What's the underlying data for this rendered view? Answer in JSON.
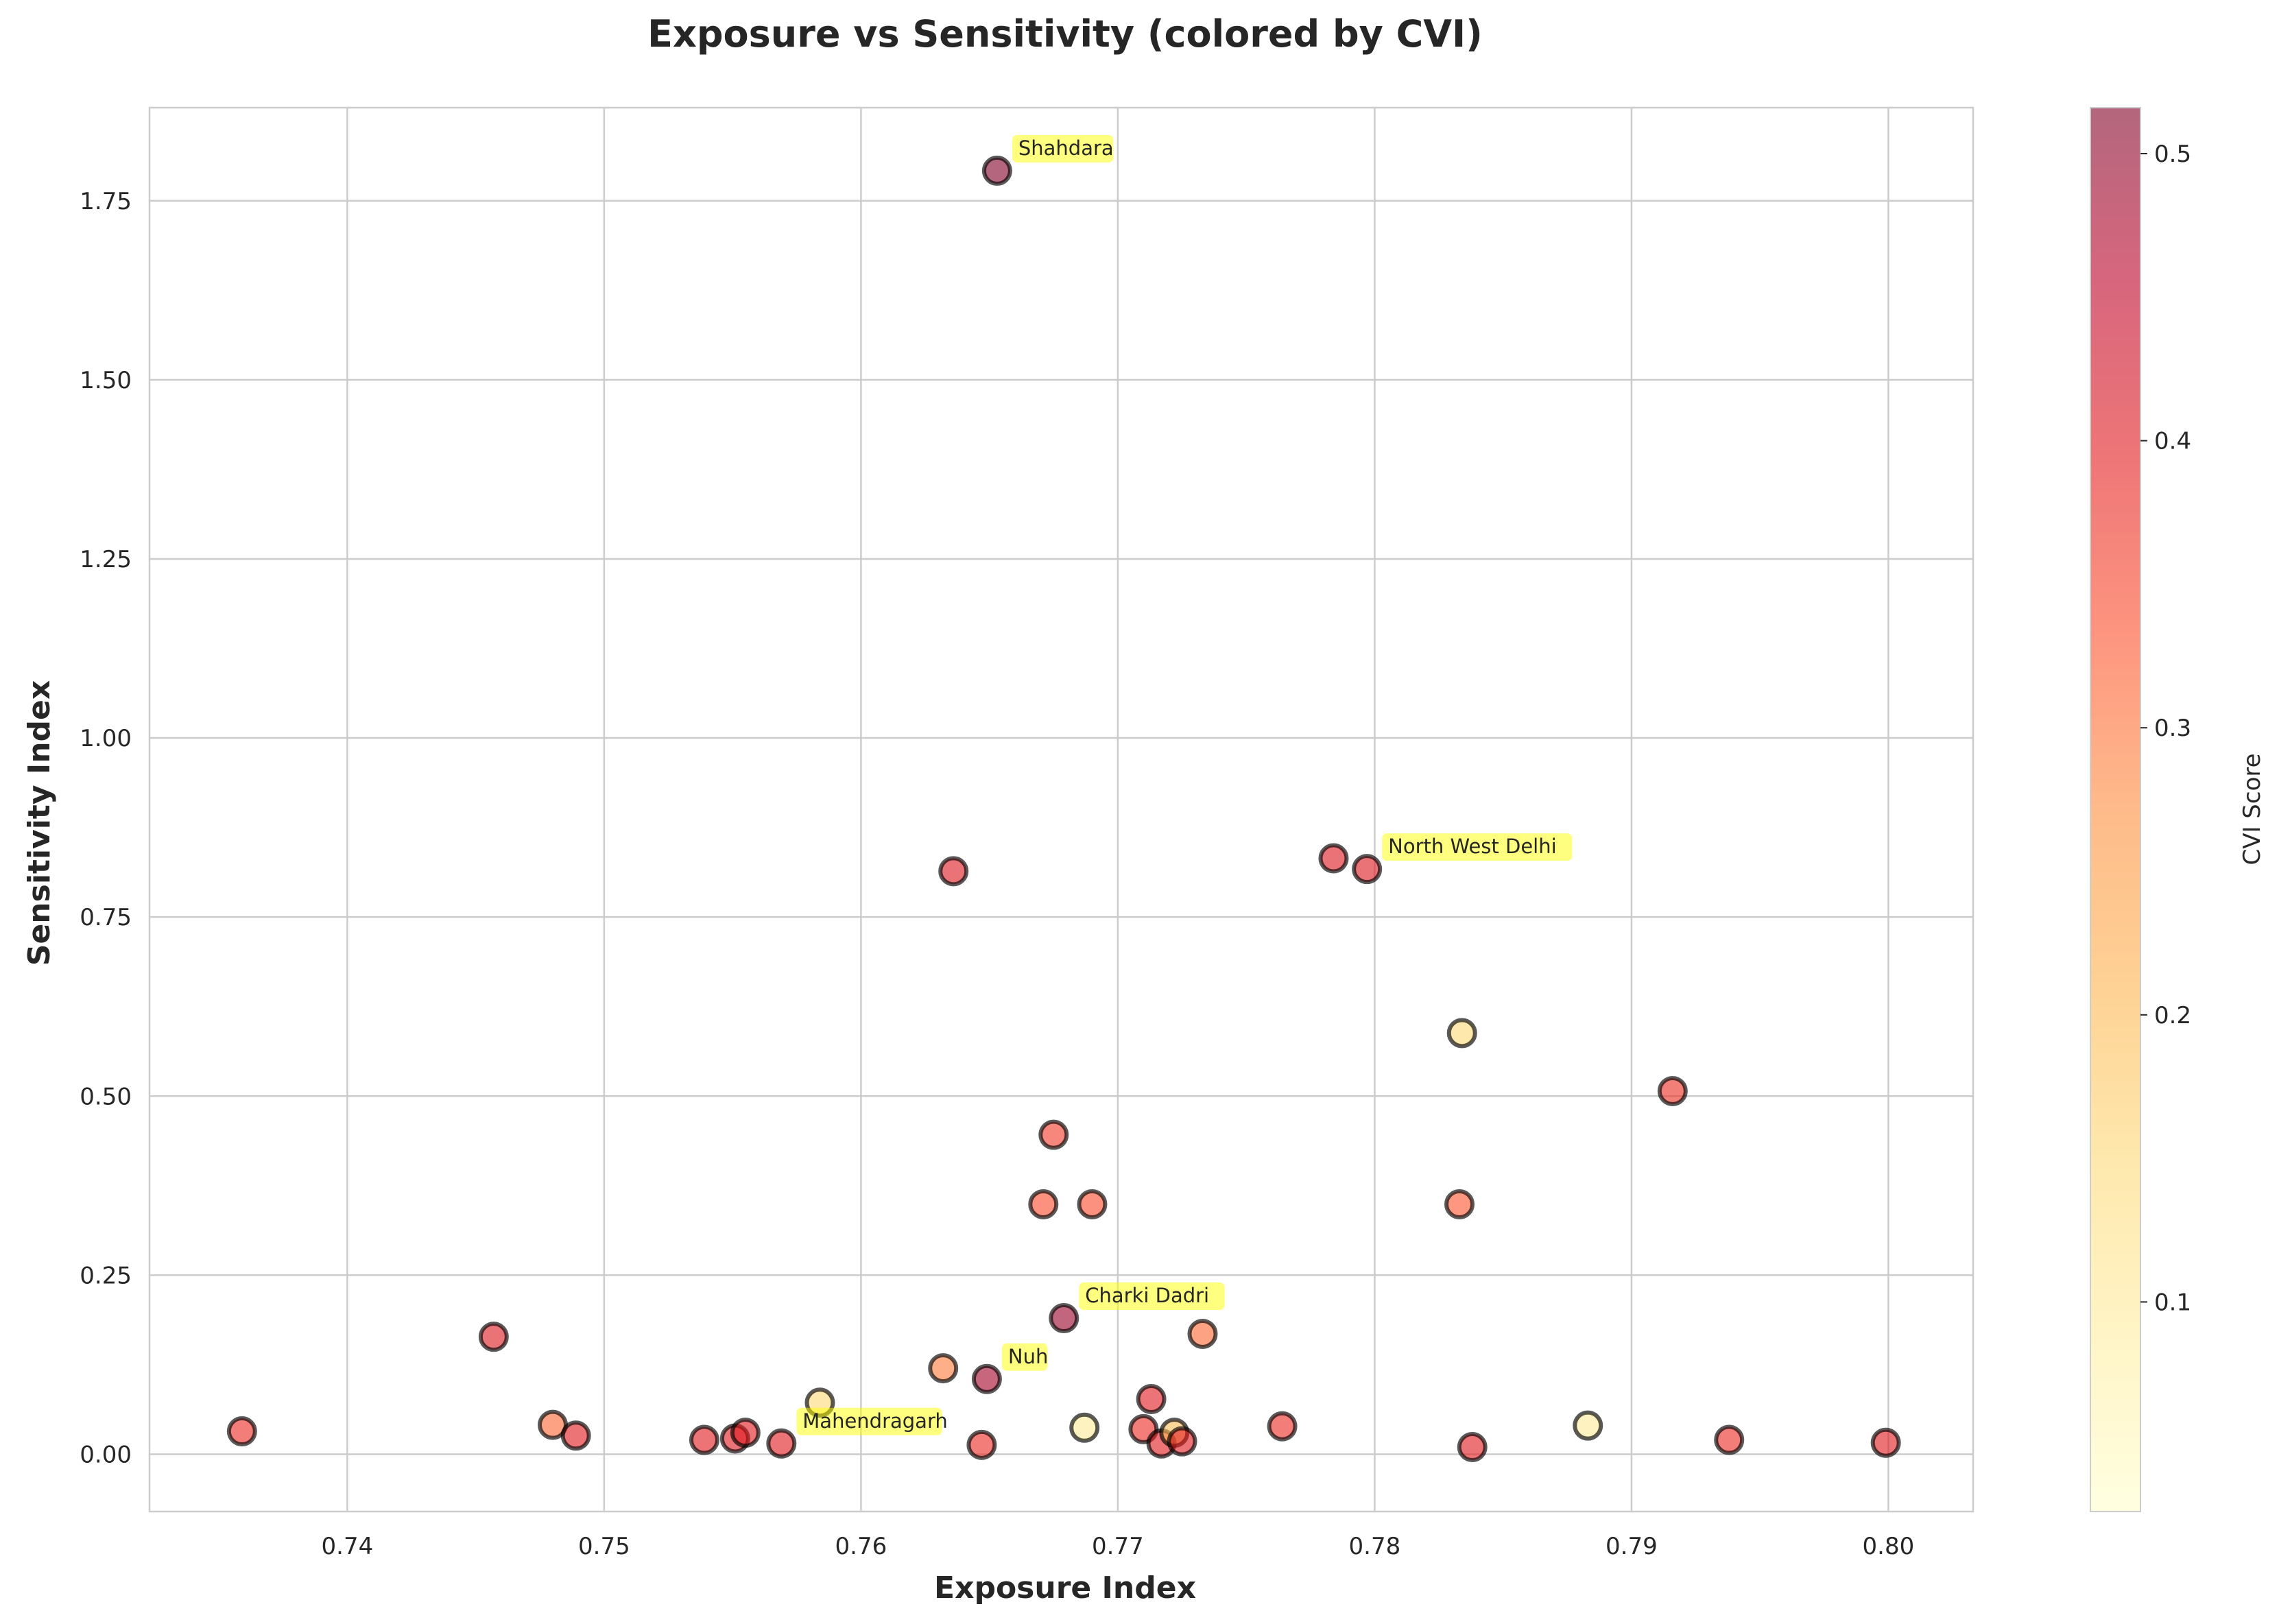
{
  "chart_data": {
    "type": "scatter",
    "title": "Exposure vs Sensitivity (colored by CVI)",
    "xlabel": "Exposure Index",
    "ylabel": "Sensitivity Index",
    "xlim": [
      0.7323,
      0.8033
    ],
    "ylim": [
      -0.08,
      1.88
    ],
    "xticks": [
      0.74,
      0.75,
      0.76,
      0.77,
      0.78,
      0.79,
      0.8
    ],
    "xtick_labels": [
      "0.74",
      "0.75",
      "0.76",
      "0.77",
      "0.78",
      "0.79",
      "0.80"
    ],
    "yticks": [
      0.0,
      0.25,
      0.5,
      0.75,
      1.0,
      1.25,
      1.5,
      1.75
    ],
    "ytick_labels": [
      "0.00",
      "0.25",
      "0.50",
      "0.75",
      "1.00",
      "1.25",
      "1.50",
      "1.75"
    ],
    "grid": true,
    "colorbar": {
      "label": "CVI Score",
      "range": [
        0.027,
        0.516
      ],
      "ticks": [
        0.1,
        0.2,
        0.3,
        0.4,
        0.5
      ],
      "tick_labels": [
        "0.1",
        "0.2",
        "0.3",
        "0.4",
        "0.5"
      ],
      "colormap": "YlOrRd"
    },
    "points": [
      {
        "x": 0.7653,
        "y": 1.792,
        "cvi": 0.516,
        "label": "Shahdara"
      },
      {
        "x": 0.7636,
        "y": 0.814,
        "cvi": 0.405
      },
      {
        "x": 0.7784,
        "y": 0.832,
        "cvi": 0.405
      },
      {
        "x": 0.7797,
        "y": 0.817,
        "cvi": 0.405,
        "label": "North West Delhi"
      },
      {
        "x": 0.7834,
        "y": 0.588,
        "cvi": 0.15
      },
      {
        "x": 0.7916,
        "y": 0.507,
        "cvi": 0.375
      },
      {
        "x": 0.7675,
        "y": 0.446,
        "cvi": 0.36
      },
      {
        "x": 0.7671,
        "y": 0.349,
        "cvi": 0.34
      },
      {
        "x": 0.769,
        "y": 0.349,
        "cvi": 0.34
      },
      {
        "x": 0.7833,
        "y": 0.349,
        "cvi": 0.33
      },
      {
        "x": 0.7679,
        "y": 0.19,
        "cvi": 0.49,
        "label": "Charki Dadri"
      },
      {
        "x": 0.7733,
        "y": 0.168,
        "cvi": 0.31
      },
      {
        "x": 0.7457,
        "y": 0.164,
        "cvi": 0.405
      },
      {
        "x": 0.7632,
        "y": 0.12,
        "cvi": 0.29
      },
      {
        "x": 0.7649,
        "y": 0.105,
        "cvi": 0.48,
        "label": "Nuh"
      },
      {
        "x": 0.7713,
        "y": 0.077,
        "cvi": 0.4
      },
      {
        "x": 0.7584,
        "y": 0.072,
        "cvi": 0.15
      },
      {
        "x": 0.7359,
        "y": 0.032,
        "cvi": 0.38
      },
      {
        "x": 0.748,
        "y": 0.041,
        "cvi": 0.31
      },
      {
        "x": 0.7489,
        "y": 0.026,
        "cvi": 0.4
      },
      {
        "x": 0.7539,
        "y": 0.02,
        "cvi": 0.4
      },
      {
        "x": 0.7551,
        "y": 0.022,
        "cvi": 0.4
      },
      {
        "x": 0.7555,
        "y": 0.03,
        "cvi": 0.4
      },
      {
        "x": 0.7569,
        "y": 0.015,
        "cvi": 0.4,
        "label": "Mahendragarh"
      },
      {
        "x": 0.7647,
        "y": 0.013,
        "cvi": 0.38
      },
      {
        "x": 0.7687,
        "y": 0.037,
        "cvi": 0.1
      },
      {
        "x": 0.771,
        "y": 0.035,
        "cvi": 0.38
      },
      {
        "x": 0.7717,
        "y": 0.015,
        "cvi": 0.4
      },
      {
        "x": 0.7722,
        "y": 0.03,
        "cvi": 0.2
      },
      {
        "x": 0.7725,
        "y": 0.018,
        "cvi": 0.4
      },
      {
        "x": 0.7764,
        "y": 0.039,
        "cvi": 0.38
      },
      {
        "x": 0.7838,
        "y": 0.01,
        "cvi": 0.4
      },
      {
        "x": 0.7883,
        "y": 0.04,
        "cvi": 0.1
      },
      {
        "x": 0.7938,
        "y": 0.02,
        "cvi": 0.38
      },
      {
        "x": 0.7999,
        "y": 0.016,
        "cvi": 0.4
      }
    ]
  }
}
